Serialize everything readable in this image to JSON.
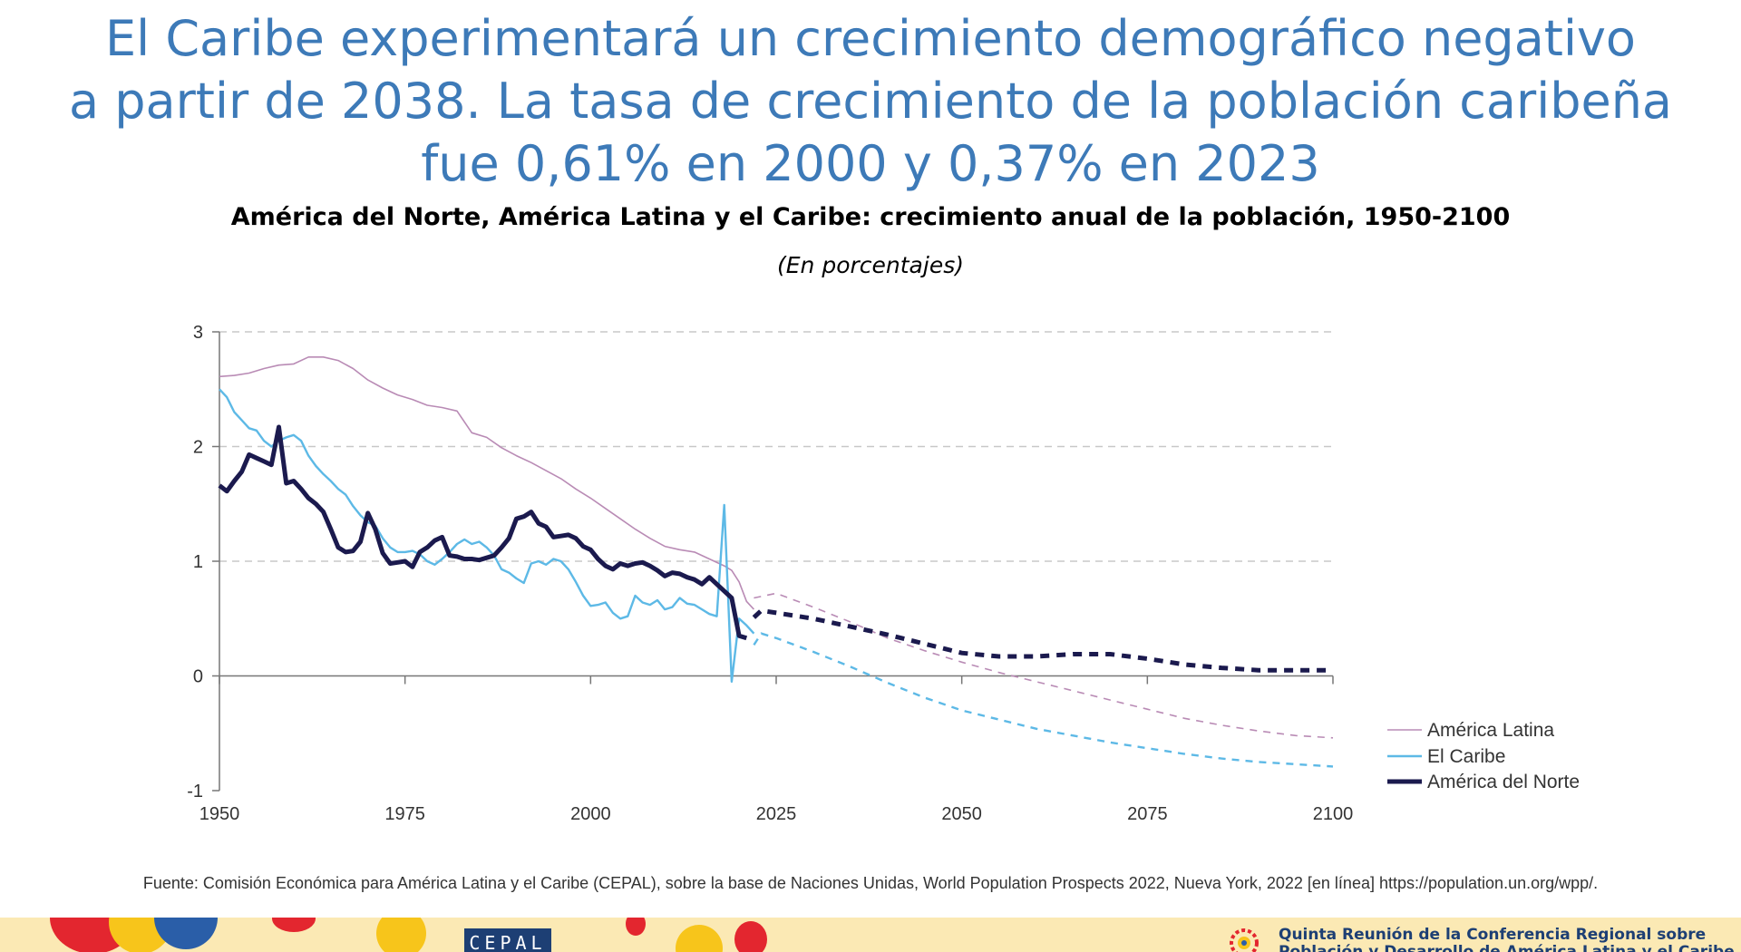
{
  "slide": {
    "title_lines": [
      "El Caribe experimentará un crecimiento demográfico negativo",
      "a partir de 2038. La tasa de crecimiento de la población caribeña",
      "fue 0,61% en 2000 y 0,37% en 2023"
    ],
    "chart_title": "América del Norte, América Latina y el Caribe: crecimiento anual de la población, 1950-2100",
    "chart_subtitle": "(En porcentajes)",
    "source": "Fuente: Comisión Económica para América Latina y el Caribe (CEPAL), sobre la base de Naciones Unidas, World Population Prospects 2022, Nueva York, 2022 [en línea] https://population.un.org/wpp/.",
    "footer": {
      "logo_text": "CEPAL",
      "event_lines": [
        "Quinta Reunión de la Conferencia Regional sobre",
        "Población y Desarrollo de América Latina y el Caribe"
      ]
    }
  },
  "chart_data": {
    "type": "line",
    "title": "América del Norte, América Latina y el Caribe: crecimiento anual de la población, 1950-2100",
    "subtitle": "(En porcentajes)",
    "xlabel": "",
    "ylabel": "",
    "xlim": [
      1950,
      2100
    ],
    "ylim": [
      -1,
      3
    ],
    "x_ticks": [
      1950,
      1975,
      2000,
      2025,
      2050,
      2075,
      2100
    ],
    "y_ticks": [
      -1,
      0,
      1,
      2,
      3
    ],
    "grid": "horizontal dashed",
    "legend": "bottom-right",
    "series": [
      {
        "name": "América Latina",
        "color": "#b98bb5",
        "historical": [
          [
            1950,
            2.61
          ],
          [
            1952,
            2.62
          ],
          [
            1954,
            2.64
          ],
          [
            1956,
            2.68
          ],
          [
            1958,
            2.71
          ],
          [
            1960,
            2.72
          ],
          [
            1962,
            2.78
          ],
          [
            1964,
            2.78
          ],
          [
            1966,
            2.75
          ],
          [
            1968,
            2.68
          ],
          [
            1970,
            2.58
          ],
          [
            1972,
            2.51
          ],
          [
            1974,
            2.45
          ],
          [
            1976,
            2.41
          ],
          [
            1978,
            2.36
          ],
          [
            1980,
            2.34
          ],
          [
            1982,
            2.31
          ],
          [
            1984,
            2.12
          ],
          [
            1986,
            2.08
          ],
          [
            1988,
            1.99
          ],
          [
            1990,
            1.92
          ],
          [
            1992,
            1.86
          ],
          [
            1994,
            1.79
          ],
          [
            1996,
            1.72
          ],
          [
            1998,
            1.63
          ],
          [
            2000,
            1.55
          ],
          [
            2002,
            1.46
          ],
          [
            2004,
            1.37
          ],
          [
            2006,
            1.28
          ],
          [
            2008,
            1.2
          ],
          [
            2010,
            1.13
          ],
          [
            2012,
            1.1
          ],
          [
            2014,
            1.08
          ],
          [
            2016,
            1.02
          ],
          [
            2018,
            0.96
          ],
          [
            2019,
            0.92
          ],
          [
            2020,
            0.82
          ],
          [
            2021,
            0.65
          ],
          [
            2022,
            0.58
          ]
        ],
        "projection": [
          [
            2022,
            0.68
          ],
          [
            2025,
            0.72
          ],
          [
            2030,
            0.6
          ],
          [
            2035,
            0.47
          ],
          [
            2040,
            0.33
          ],
          [
            2045,
            0.22
          ],
          [
            2050,
            0.12
          ],
          [
            2055,
            0.03
          ],
          [
            2060,
            -0.05
          ],
          [
            2065,
            -0.13
          ],
          [
            2070,
            -0.21
          ],
          [
            2075,
            -0.29
          ],
          [
            2080,
            -0.37
          ],
          [
            2085,
            -0.43
          ],
          [
            2090,
            -0.48
          ],
          [
            2095,
            -0.52
          ],
          [
            2100,
            -0.54
          ]
        ]
      },
      {
        "name": "El Caribe",
        "color": "#5db9e6",
        "historical": [
          [
            1950,
            2.5
          ],
          [
            1951,
            2.43
          ],
          [
            1952,
            2.3
          ],
          [
            1953,
            2.23
          ],
          [
            1954,
            2.16
          ],
          [
            1955,
            2.14
          ],
          [
            1956,
            2.05
          ],
          [
            1957,
            2.0
          ],
          [
            1958,
            2.05
          ],
          [
            1959,
            2.08
          ],
          [
            1960,
            2.1
          ],
          [
            1961,
            2.05
          ],
          [
            1962,
            1.92
          ],
          [
            1963,
            1.83
          ],
          [
            1964,
            1.76
          ],
          [
            1965,
            1.7
          ],
          [
            1966,
            1.63
          ],
          [
            1967,
            1.58
          ],
          [
            1968,
            1.48
          ],
          [
            1969,
            1.4
          ],
          [
            1970,
            1.34
          ],
          [
            1971,
            1.31
          ],
          [
            1972,
            1.2
          ],
          [
            1973,
            1.12
          ],
          [
            1974,
            1.08
          ],
          [
            1975,
            1.08
          ],
          [
            1976,
            1.09
          ],
          [
            1977,
            1.06
          ],
          [
            1978,
            1.0
          ],
          [
            1979,
            0.97
          ],
          [
            1980,
            1.02
          ],
          [
            1981,
            1.08
          ],
          [
            1982,
            1.15
          ],
          [
            1983,
            1.19
          ],
          [
            1984,
            1.15
          ],
          [
            1985,
            1.17
          ],
          [
            1986,
            1.12
          ],
          [
            1987,
            1.05
          ],
          [
            1988,
            0.93
          ],
          [
            1989,
            0.9
          ],
          [
            1990,
            0.85
          ],
          [
            1991,
            0.81
          ],
          [
            1992,
            0.98
          ],
          [
            1993,
            1.0
          ],
          [
            1994,
            0.97
          ],
          [
            1995,
            1.02
          ],
          [
            1996,
            1.0
          ],
          [
            1997,
            0.93
          ],
          [
            1998,
            0.82
          ],
          [
            1999,
            0.7
          ],
          [
            2000,
            0.61
          ],
          [
            2001,
            0.62
          ],
          [
            2002,
            0.64
          ],
          [
            2003,
            0.55
          ],
          [
            2004,
            0.5
          ],
          [
            2005,
            0.52
          ],
          [
            2006,
            0.7
          ],
          [
            2007,
            0.64
          ],
          [
            2008,
            0.62
          ],
          [
            2009,
            0.66
          ],
          [
            2010,
            0.58
          ],
          [
            2011,
            0.6
          ],
          [
            2012,
            0.68
          ],
          [
            2013,
            0.63
          ],
          [
            2014,
            0.62
          ],
          [
            2015,
            0.58
          ],
          [
            2016,
            0.54
          ],
          [
            2017,
            0.52
          ],
          [
            2018,
            1.49
          ],
          [
            2019,
            -0.05
          ],
          [
            2020,
            0.5
          ],
          [
            2021,
            0.44
          ],
          [
            2022,
            0.37
          ]
        ],
        "projection": [
          [
            2022,
            0.27
          ],
          [
            2023,
            0.37
          ],
          [
            2025,
            0.33
          ],
          [
            2030,
            0.21
          ],
          [
            2035,
            0.08
          ],
          [
            2040,
            -0.06
          ],
          [
            2045,
            -0.19
          ],
          [
            2050,
            -0.3
          ],
          [
            2055,
            -0.38
          ],
          [
            2060,
            -0.46
          ],
          [
            2065,
            -0.52
          ],
          [
            2070,
            -0.58
          ],
          [
            2075,
            -0.63
          ],
          [
            2080,
            -0.68
          ],
          [
            2085,
            -0.72
          ],
          [
            2090,
            -0.75
          ],
          [
            2095,
            -0.77
          ],
          [
            2100,
            -0.79
          ]
        ]
      },
      {
        "name": "América del Norte",
        "color": "#1b1a4e",
        "historical": [
          [
            1950,
            1.66
          ],
          [
            1951,
            1.61
          ],
          [
            1952,
            1.7
          ],
          [
            1953,
            1.78
          ],
          [
            1954,
            1.93
          ],
          [
            1955,
            1.9
          ],
          [
            1956,
            1.87
          ],
          [
            1957,
            1.84
          ],
          [
            1958,
            2.17
          ],
          [
            1959,
            1.68
          ],
          [
            1960,
            1.7
          ],
          [
            1961,
            1.63
          ],
          [
            1962,
            1.55
          ],
          [
            1963,
            1.5
          ],
          [
            1964,
            1.43
          ],
          [
            1965,
            1.28
          ],
          [
            1966,
            1.12
          ],
          [
            1967,
            1.08
          ],
          [
            1968,
            1.09
          ],
          [
            1969,
            1.17
          ],
          [
            1970,
            1.42
          ],
          [
            1971,
            1.28
          ],
          [
            1972,
            1.07
          ],
          [
            1973,
            0.98
          ],
          [
            1974,
            0.99
          ],
          [
            1975,
            1.0
          ],
          [
            1976,
            0.95
          ],
          [
            1977,
            1.08
          ],
          [
            1978,
            1.12
          ],
          [
            1979,
            1.18
          ],
          [
            1980,
            1.21
          ],
          [
            1981,
            1.05
          ],
          [
            1982,
            1.04
          ],
          [
            1983,
            1.02
          ],
          [
            1984,
            1.02
          ],
          [
            1985,
            1.01
          ],
          [
            1986,
            1.03
          ],
          [
            1987,
            1.05
          ],
          [
            1988,
            1.12
          ],
          [
            1989,
            1.2
          ],
          [
            1990,
            1.37
          ],
          [
            1991,
            1.39
          ],
          [
            1992,
            1.43
          ],
          [
            1993,
            1.33
          ],
          [
            1994,
            1.3
          ],
          [
            1995,
            1.21
          ],
          [
            1996,
            1.22
          ],
          [
            1997,
            1.23
          ],
          [
            1998,
            1.2
          ],
          [
            1999,
            1.13
          ],
          [
            2000,
            1.1
          ],
          [
            2001,
            1.02
          ],
          [
            2002,
            0.96
          ],
          [
            2003,
            0.93
          ],
          [
            2004,
            0.98
          ],
          [
            2005,
            0.96
          ],
          [
            2006,
            0.98
          ],
          [
            2007,
            0.99
          ],
          [
            2008,
            0.96
          ],
          [
            2009,
            0.92
          ],
          [
            2010,
            0.87
          ],
          [
            2011,
            0.9
          ],
          [
            2012,
            0.89
          ],
          [
            2013,
            0.86
          ],
          [
            2014,
            0.84
          ],
          [
            2015,
            0.8
          ],
          [
            2016,
            0.86
          ],
          [
            2017,
            0.8
          ],
          [
            2018,
            0.74
          ],
          [
            2019,
            0.68
          ],
          [
            2020,
            0.35
          ],
          [
            2021,
            0.33
          ]
        ],
        "projection": [
          [
            2022,
            0.51
          ],
          [
            2023,
            0.57
          ],
          [
            2025,
            0.55
          ],
          [
            2030,
            0.5
          ],
          [
            2035,
            0.43
          ],
          [
            2040,
            0.36
          ],
          [
            2045,
            0.28
          ],
          [
            2050,
            0.2
          ],
          [
            2055,
            0.17
          ],
          [
            2060,
            0.17
          ],
          [
            2065,
            0.19
          ],
          [
            2070,
            0.19
          ],
          [
            2075,
            0.15
          ],
          [
            2080,
            0.1
          ],
          [
            2085,
            0.07
          ],
          [
            2090,
            0.05
          ],
          [
            2095,
            0.05
          ],
          [
            2100,
            0.05
          ]
        ]
      }
    ]
  }
}
